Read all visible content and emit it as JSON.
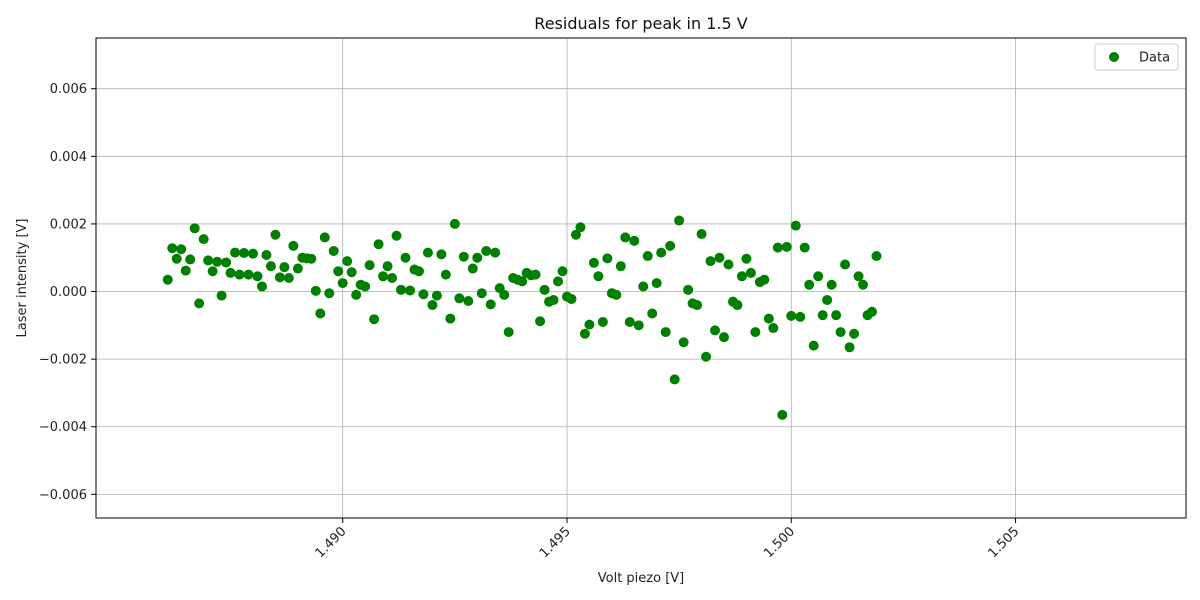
{
  "chart_data": {
    "type": "scatter",
    "title": "Residuals for peak in 1.5 V",
    "xlabel": "Volt piezo [V]",
    "ylabel": "Laser intensity [V]",
    "xlim": [
      1.4845,
      1.5088
    ],
    "ylim": [
      -0.0067,
      0.0075
    ],
    "x_ticks": [
      1.49,
      1.495,
      1.5,
      1.505
    ],
    "x_tick_labels": [
      "1.490",
      "1.495",
      "1.500",
      "1.505"
    ],
    "y_ticks": [
      -0.006,
      -0.004,
      -0.002,
      0.0,
      0.002,
      0.004,
      0.006
    ],
    "y_tick_labels": [
      "−0.006",
      "−0.004",
      "−0.002",
      "0.000",
      "0.002",
      "0.004",
      "0.006"
    ],
    "grid": true,
    "legend_position": "top-right",
    "marker_color": "#008000",
    "series": [
      {
        "name": "Data",
        "points": [
          [
            1.4861,
            0.00035
          ],
          [
            1.4862,
            0.00128
          ],
          [
            1.4863,
            0.00097
          ],
          [
            1.4864,
            0.00125
          ],
          [
            1.4865,
            0.00062
          ],
          [
            1.4866,
            0.00095
          ],
          [
            1.4867,
            0.00187
          ],
          [
            1.4868,
            -0.00035
          ],
          [
            1.4869,
            0.00155
          ],
          [
            1.487,
            0.00092
          ],
          [
            1.4871,
            0.0006
          ],
          [
            1.4872,
            0.00088
          ],
          [
            1.4873,
            -0.00012
          ],
          [
            1.4874,
            0.00086
          ],
          [
            1.4875,
            0.00055
          ],
          [
            1.4876,
            0.00115
          ],
          [
            1.4877,
            0.0005
          ],
          [
            1.4878,
            0.00114
          ],
          [
            1.4879,
            0.0005
          ],
          [
            1.488,
            0.00112
          ],
          [
            1.4881,
            0.00045
          ],
          [
            1.4882,
            0.00015
          ],
          [
            1.4883,
            0.00108
          ],
          [
            1.4884,
            0.00075
          ],
          [
            1.4885,
            0.00168
          ],
          [
            1.4886,
            0.00042
          ],
          [
            1.4887,
            0.00072
          ],
          [
            1.4888,
            0.0004
          ],
          [
            1.4889,
            0.00135
          ],
          [
            1.489,
            0.00068
          ],
          [
            1.4891,
            0.001
          ],
          [
            1.4892,
            0.00098
          ],
          [
            1.4893,
            0.00097
          ],
          [
            1.4894,
            2e-05
          ],
          [
            1.4895,
            -0.00065
          ],
          [
            1.4896,
            0.0016
          ],
          [
            1.4897,
            -5e-05
          ],
          [
            1.4898,
            0.0012
          ],
          [
            1.4899,
            0.0006
          ],
          [
            1.49,
            0.00025
          ],
          [
            1.4901,
            0.0009
          ],
          [
            1.4902,
            0.00057
          ],
          [
            1.4903,
            -0.0001
          ],
          [
            1.4904,
            0.0002
          ],
          [
            1.4905,
            0.00015
          ],
          [
            1.4906,
            0.00078
          ],
          [
            1.4907,
            -0.00082
          ],
          [
            1.4908,
            0.0014
          ],
          [
            1.4909,
            0.00045
          ],
          [
            1.491,
            0.00075
          ],
          [
            1.4911,
            0.0004
          ],
          [
            1.4912,
            0.00165
          ],
          [
            1.4913,
            5e-05
          ],
          [
            1.4914,
            0.001
          ],
          [
            1.4915,
            3e-05
          ],
          [
            1.4916,
            0.00065
          ],
          [
            1.4917,
            0.0006
          ],
          [
            1.4918,
            -8e-05
          ],
          [
            1.4919,
            0.00115
          ],
          [
            1.492,
            -0.0004
          ],
          [
            1.4921,
            -0.00012
          ],
          [
            1.4922,
            0.0011
          ],
          [
            1.4923,
            0.0005
          ],
          [
            1.4924,
            -0.0008
          ],
          [
            1.4925,
            0.002
          ],
          [
            1.4926,
            -0.0002
          ],
          [
            1.4927,
            0.00103
          ],
          [
            1.4928,
            -0.00028
          ],
          [
            1.4929,
            0.00068
          ],
          [
            1.493,
            0.001
          ],
          [
            1.4931,
            -5e-05
          ],
          [
            1.4932,
            0.0012
          ],
          [
            1.4933,
            -0.00038
          ],
          [
            1.4934,
            0.00115
          ],
          [
            1.4935,
            0.0001
          ],
          [
            1.4936,
            -0.0001
          ],
          [
            1.4937,
            -0.0012
          ],
          [
            1.4938,
            0.0004
          ],
          [
            1.4939,
            0.00035
          ],
          [
            1.494,
            0.0003
          ],
          [
            1.4941,
            0.00055
          ],
          [
            1.4942,
            0.00048
          ],
          [
            1.4943,
            0.0005
          ],
          [
            1.4944,
            -0.00088
          ],
          [
            1.4945,
            5e-05
          ],
          [
            1.4946,
            -0.0003
          ],
          [
            1.4947,
            -0.00025
          ],
          [
            1.4948,
            0.0003
          ],
          [
            1.4949,
            0.0006
          ],
          [
            1.495,
            -0.00015
          ],
          [
            1.4951,
            -0.00022
          ],
          [
            1.4952,
            0.00168
          ],
          [
            1.4953,
            0.0019
          ],
          [
            1.4954,
            -0.00125
          ],
          [
            1.4955,
            -0.00098
          ],
          [
            1.4956,
            0.00085
          ],
          [
            1.4957,
            0.00045
          ],
          [
            1.4958,
            -0.0009
          ],
          [
            1.4959,
            0.00098
          ],
          [
            1.496,
            -5e-05
          ],
          [
            1.4961,
            -0.0001
          ],
          [
            1.4962,
            0.00075
          ],
          [
            1.4963,
            0.0016
          ],
          [
            1.4964,
            -0.0009
          ],
          [
            1.4965,
            0.0015
          ],
          [
            1.4966,
            -0.001
          ],
          [
            1.4967,
            0.00015
          ],
          [
            1.4968,
            0.00105
          ],
          [
            1.4969,
            -0.00065
          ],
          [
            1.497,
            0.00025
          ],
          [
            1.4971,
            0.00115
          ],
          [
            1.4972,
            -0.0012
          ],
          [
            1.4973,
            0.00135
          ],
          [
            1.4974,
            -0.0026
          ],
          [
            1.4975,
            0.0021
          ],
          [
            1.4976,
            -0.0015
          ],
          [
            1.4977,
            5e-05
          ],
          [
            1.4978,
            -0.00035
          ],
          [
            1.4979,
            -0.0004
          ],
          [
            1.498,
            0.0017
          ],
          [
            1.4981,
            -0.00193
          ],
          [
            1.4982,
            0.0009
          ],
          [
            1.4983,
            -0.00115
          ],
          [
            1.4984,
            0.001
          ],
          [
            1.4985,
            -0.00135
          ],
          [
            1.4986,
            0.0008
          ],
          [
            1.4987,
            -0.0003
          ],
          [
            1.4988,
            -0.0004
          ],
          [
            1.4989,
            0.00045
          ],
          [
            1.499,
            0.00097
          ],
          [
            1.4991,
            0.00055
          ],
          [
            1.4992,
            -0.0012
          ],
          [
            1.4993,
            0.00028
          ],
          [
            1.4994,
            0.00035
          ],
          [
            1.4995,
            -0.0008
          ],
          [
            1.4996,
            -0.00108
          ],
          [
            1.4997,
            0.0013
          ],
          [
            1.4998,
            -0.00365
          ],
          [
            1.4999,
            0.00132
          ],
          [
            1.5,
            -0.00072
          ],
          [
            1.5001,
            0.00195
          ],
          [
            1.5002,
            -0.00075
          ],
          [
            1.5003,
            0.0013
          ],
          [
            1.5004,
            0.0002
          ],
          [
            1.5005,
            -0.0016
          ],
          [
            1.5006,
            0.00045
          ],
          [
            1.5007,
            -0.0007
          ],
          [
            1.5008,
            -0.00025
          ],
          [
            1.5009,
            0.0002
          ],
          [
            1.501,
            -0.0007
          ],
          [
            1.5011,
            -0.0012
          ],
          [
            1.5012,
            0.0008
          ],
          [
            1.5013,
            -0.00165
          ],
          [
            1.5014,
            -0.00125
          ],
          [
            1.5015,
            0.00045
          ],
          [
            1.5016,
            0.0002
          ],
          [
            1.5017,
            -0.0007
          ],
          [
            1.5018,
            -0.0006
          ],
          [
            1.5019,
            0.00105
          ]
        ]
      }
    ]
  }
}
